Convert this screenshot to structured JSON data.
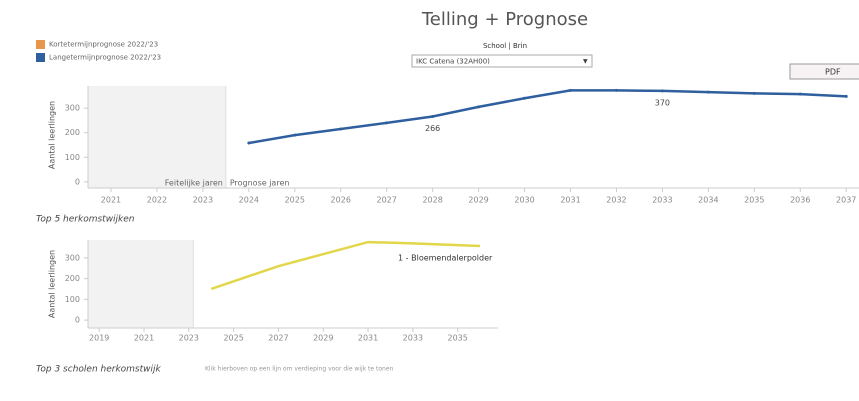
{
  "header": {
    "title": "Telling + Prognose"
  },
  "legend": [
    {
      "label": "Kortetermijnprognose 2022/'23",
      "color": "#e8964a"
    },
    {
      "label": "Langetermijnprognose 2022/'23",
      "color": "#2f5f9e"
    }
  ],
  "filter": {
    "label": "School | Brin",
    "value": "IKC Catena (32AH00)"
  },
  "button": {
    "label": "PDF"
  },
  "chart_data": [
    {
      "type": "line",
      "y_label": "Aantal leerlingen",
      "regions": [
        {
          "label": "Feitelijke jaren",
          "from": 2020.5,
          "to": 2023.5
        },
        {
          "label": "Prognose jaren",
          "from": 2023.5,
          "to": 2037.3
        }
      ],
      "x": [
        2024,
        2025,
        2026,
        2027,
        2028,
        2029,
        2030,
        2031,
        2032,
        2033,
        2034,
        2035,
        2036,
        2037
      ],
      "series": [
        {
          "color": "#2f5f9e",
          "values": [
            158,
            190,
            215,
            240,
            266,
            305,
            340,
            372,
            372,
            370,
            365,
            360,
            357,
            348
          ],
          "value_labels": [
            null,
            null,
            null,
            null,
            "266",
            null,
            null,
            null,
            null,
            "370",
            null,
            null,
            null,
            null
          ]
        }
      ],
      "xlim": [
        2020.5,
        2037.3
      ],
      "xticks": [
        2021,
        2022,
        2023,
        2024,
        2025,
        2026,
        2027,
        2028,
        2029,
        2030,
        2031,
        2032,
        2033,
        2034,
        2035,
        2036,
        2037
      ],
      "ylim": [
        -25,
        390
      ],
      "yticks": [
        0,
        100,
        200,
        300
      ]
    },
    {
      "type": "line",
      "title": "Top 5 herkomstwijken",
      "y_label": "Aantal leerlingen",
      "regions": [
        {
          "from": 2018.5,
          "to": 2023.2
        }
      ],
      "x": [
        2024,
        2027,
        2031,
        2033,
        2036
      ],
      "series": [
        {
          "name": "1 - Bloemendalerpolder",
          "color": "#e2d64a",
          "values": [
            150,
            260,
            376,
            370,
            357
          ]
        }
      ],
      "xlim": [
        2018.5,
        2036.8
      ],
      "xticks": [
        2019,
        2021,
        2023,
        2025,
        2027,
        2029,
        2031,
        2033,
        2035
      ],
      "ylim": [
        -38,
        386
      ],
      "yticks": [
        0,
        100,
        200,
        300
      ]
    }
  ],
  "footer": {
    "title": "Top 3 scholen herkomstwijk",
    "note": "Klik hierboven op een lijn om verdieping voor die wijk te tonen"
  }
}
